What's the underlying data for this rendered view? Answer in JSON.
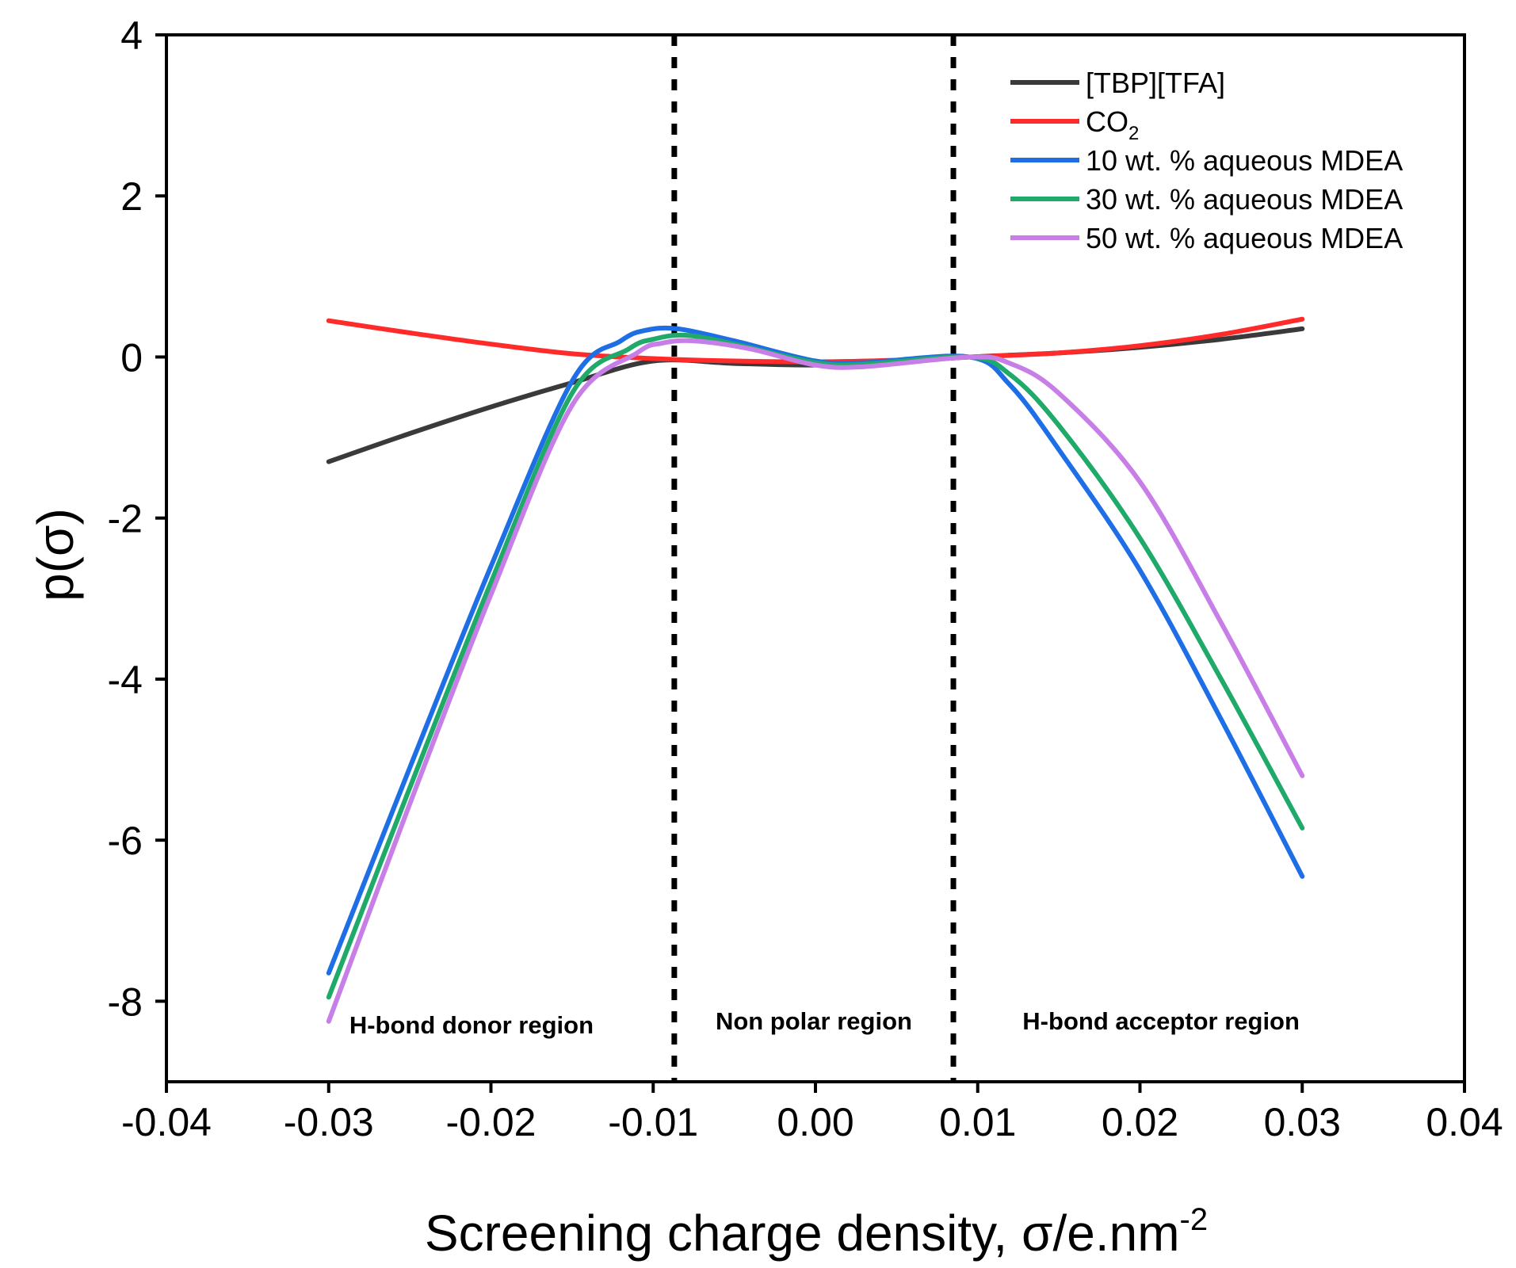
{
  "chart_data": {
    "type": "line",
    "title": "",
    "xlabel": "Screening charge density, σ/e.nm",
    "xlabel_superscript": "-2",
    "ylabel": "p(σ)",
    "xlim": [
      -0.04,
      0.04
    ],
    "ylim": [
      -9,
      4
    ],
    "xticks": [
      -0.04,
      -0.03,
      -0.02,
      -0.01,
      0.0,
      0.01,
      0.02,
      0.03,
      0.04
    ],
    "xtick_labels": [
      "-0.04",
      "-0.03",
      "-0.02",
      "-0.01",
      "0.00",
      "0.01",
      "0.02",
      "0.03",
      "0.04"
    ],
    "yticks": [
      -8,
      -6,
      -4,
      -2,
      0,
      2,
      4
    ],
    "ytick_labels": [
      "-8",
      "-6",
      "-4",
      "-2",
      "0",
      "2",
      "4"
    ],
    "grid": false,
    "legend_position": "top-right",
    "reference_lines": [
      {
        "orientation": "vertical",
        "x": -0.0087,
        "style": "dotted",
        "color": "#000000"
      },
      {
        "orientation": "vertical",
        "x": 0.0085,
        "style": "dotted",
        "color": "#000000"
      }
    ],
    "annotations": [
      {
        "text": "H-bond donor region",
        "x": -0.0212,
        "y": -8.4
      },
      {
        "text": "Non polar region",
        "x": -0.0001,
        "y": -8.35
      },
      {
        "text": "H-bond acceptor region",
        "x": 0.0213,
        "y": -8.35
      }
    ],
    "series": [
      {
        "name": "[TBP][TFA]",
        "label_main": "[TBP][TFA]",
        "label_sub": "",
        "color": "#3a3a3a",
        "x": [
          -0.03,
          -0.025,
          -0.02,
          -0.015,
          -0.01,
          -0.005,
          0.0,
          0.005,
          0.0095,
          0.015,
          0.02,
          0.025,
          0.03
        ],
        "y": [
          -1.3,
          -0.95,
          -0.62,
          -0.32,
          -0.05,
          -0.08,
          -0.1,
          -0.06,
          0.0,
          0.05,
          0.12,
          0.22,
          0.35
        ]
      },
      {
        "name": "CO2",
        "label_main": "CO",
        "label_sub": "2",
        "color": "#ff2a2a",
        "x": [
          -0.03,
          -0.025,
          -0.02,
          -0.015,
          -0.01,
          -0.005,
          0.0,
          0.005,
          0.0095,
          0.015,
          0.02,
          0.025,
          0.03
        ],
        "y": [
          0.45,
          0.3,
          0.16,
          0.04,
          -0.02,
          -0.05,
          -0.06,
          -0.04,
          0.0,
          0.05,
          0.14,
          0.28,
          0.47
        ]
      },
      {
        "name": "10 wt. % aqueous MDEA",
        "label_main": "10 wt. % aqueous MDEA",
        "label_sub": "",
        "color": "#1e6fe6",
        "x": [
          -0.03,
          -0.025,
          -0.02,
          -0.015,
          -0.012,
          -0.0105,
          -0.0085,
          -0.005,
          0.0,
          0.003,
          0.0095,
          0.012,
          0.015,
          0.02,
          0.025,
          0.03
        ],
        "y": [
          -7.65,
          -5.1,
          -2.6,
          -0.3,
          0.2,
          0.33,
          0.35,
          0.2,
          -0.05,
          -0.07,
          0.0,
          -0.35,
          -1.15,
          -2.65,
          -4.5,
          -6.45
        ]
      },
      {
        "name": "30 wt. % aqueous MDEA",
        "label_main": "30 wt. % aqueous MDEA",
        "label_sub": "",
        "color": "#1faa6a",
        "x": [
          -0.03,
          -0.025,
          -0.02,
          -0.015,
          -0.0115,
          -0.01,
          -0.008,
          -0.005,
          0.0,
          0.003,
          0.0095,
          0.012,
          0.015,
          0.02,
          0.025,
          0.03
        ],
        "y": [
          -7.95,
          -5.35,
          -2.8,
          -0.45,
          0.1,
          0.22,
          0.27,
          0.16,
          -0.07,
          -0.09,
          0.0,
          -0.22,
          -0.85,
          -2.25,
          -4.0,
          -5.85
        ]
      },
      {
        "name": "50 wt. % aqueous MDEA",
        "label_main": "50 wt. % aqueous MDEA",
        "label_sub": "",
        "color": "#c77ee6",
        "x": [
          -0.03,
          -0.025,
          -0.02,
          -0.015,
          -0.011,
          -0.0095,
          -0.0075,
          -0.004,
          0.0,
          0.003,
          0.0095,
          0.012,
          0.015,
          0.02,
          0.025,
          0.03
        ],
        "y": [
          -8.25,
          -5.55,
          -2.95,
          -0.6,
          0.05,
          0.17,
          0.2,
          0.1,
          -0.1,
          -0.12,
          0.0,
          -0.08,
          -0.45,
          -1.55,
          -3.3,
          -5.2
        ]
      }
    ]
  }
}
